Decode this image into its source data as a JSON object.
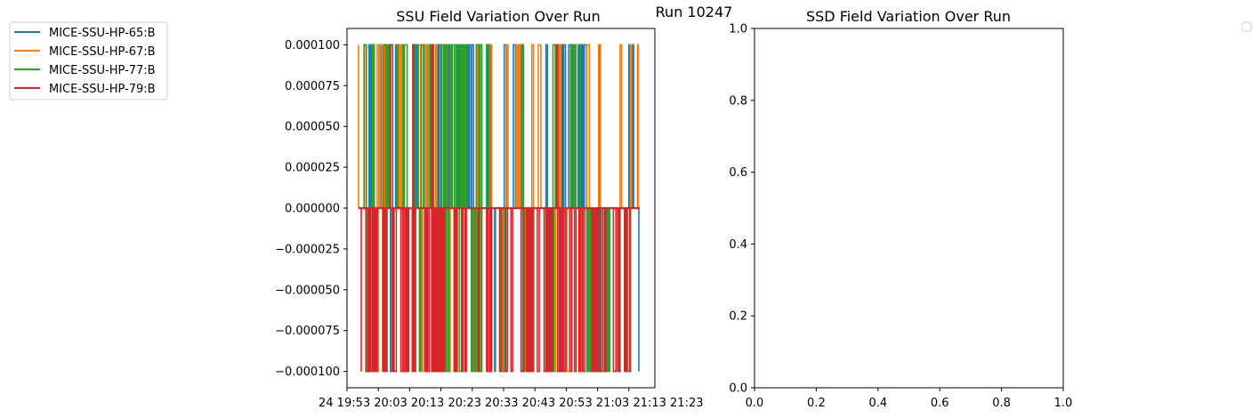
{
  "suptitle": "Run 10247",
  "colors": {
    "series": [
      "#1f77b4",
      "#ff7f0e",
      "#2ca02c",
      "#d62728"
    ],
    "axes": "#000000",
    "background": "#ffffff"
  },
  "chart_data": [
    {
      "type": "line",
      "title": "SSU Field Variation Over Run",
      "xlabel": "",
      "ylabel": "",
      "ylim": [
        -0.00011,
        0.00011
      ],
      "y_ticks": [
        "0.000100",
        "0.000075",
        "0.000050",
        "0.000025",
        "0.000000",
        "−0.000025",
        "−0.000050",
        "−0.000075",
        "−0.000100"
      ],
      "y_tick_values": [
        0.0001,
        7.5e-05,
        5e-05,
        2.5e-05,
        0,
        -2.5e-05,
        -5e-05,
        -7.5e-05,
        -0.0001
      ],
      "x_tick_text": "24 19:53 20:03 20:13 20:23 20:33 20:43 20:53 21:03 21:13 21:23",
      "x_tick_labels": [
        "24 19:53",
        "20:03",
        "20:13",
        "20:23",
        "20:33",
        "20:43",
        "20:53",
        "21:03",
        "21:13",
        "21:23"
      ],
      "legend_position": "upper-left, outside plot",
      "series": [
        {
          "name": "MICE-SSU-HP-65:B",
          "levels": [
            -0.0001,
            0.0,
            0.0001
          ],
          "x_range": [
            "19:53",
            "21:27"
          ]
        },
        {
          "name": "MICE-SSU-HP-67:B",
          "levels": [
            -0.0001,
            0.0,
            0.0001
          ],
          "x_range": [
            "19:53",
            "21:27"
          ]
        },
        {
          "name": "MICE-SSU-HP-77:B",
          "levels": [
            -0.0001,
            0.0,
            0.0001
          ],
          "x_range": [
            "19:53",
            "21:27"
          ]
        },
        {
          "name": "MICE-SSU-HP-79:B",
          "levels": [
            -0.0001,
            0.0,
            0.0001
          ],
          "x_range": [
            "19:53",
            "21:27"
          ]
        }
      ]
    },
    {
      "type": "line",
      "title": "SSD Field Variation Over Run",
      "xlabel": "",
      "ylabel": "",
      "xlim": [
        0,
        1
      ],
      "ylim": [
        0,
        1
      ],
      "x_ticks": [
        "0.0",
        "0.2",
        "0.4",
        "0.6",
        "0.8",
        "1.0"
      ],
      "y_ticks": [
        "0.0",
        "0.2",
        "0.4",
        "0.6",
        "0.8",
        "1.0"
      ],
      "legend_position": "upper-right, outside plot, empty",
      "series": []
    }
  ]
}
